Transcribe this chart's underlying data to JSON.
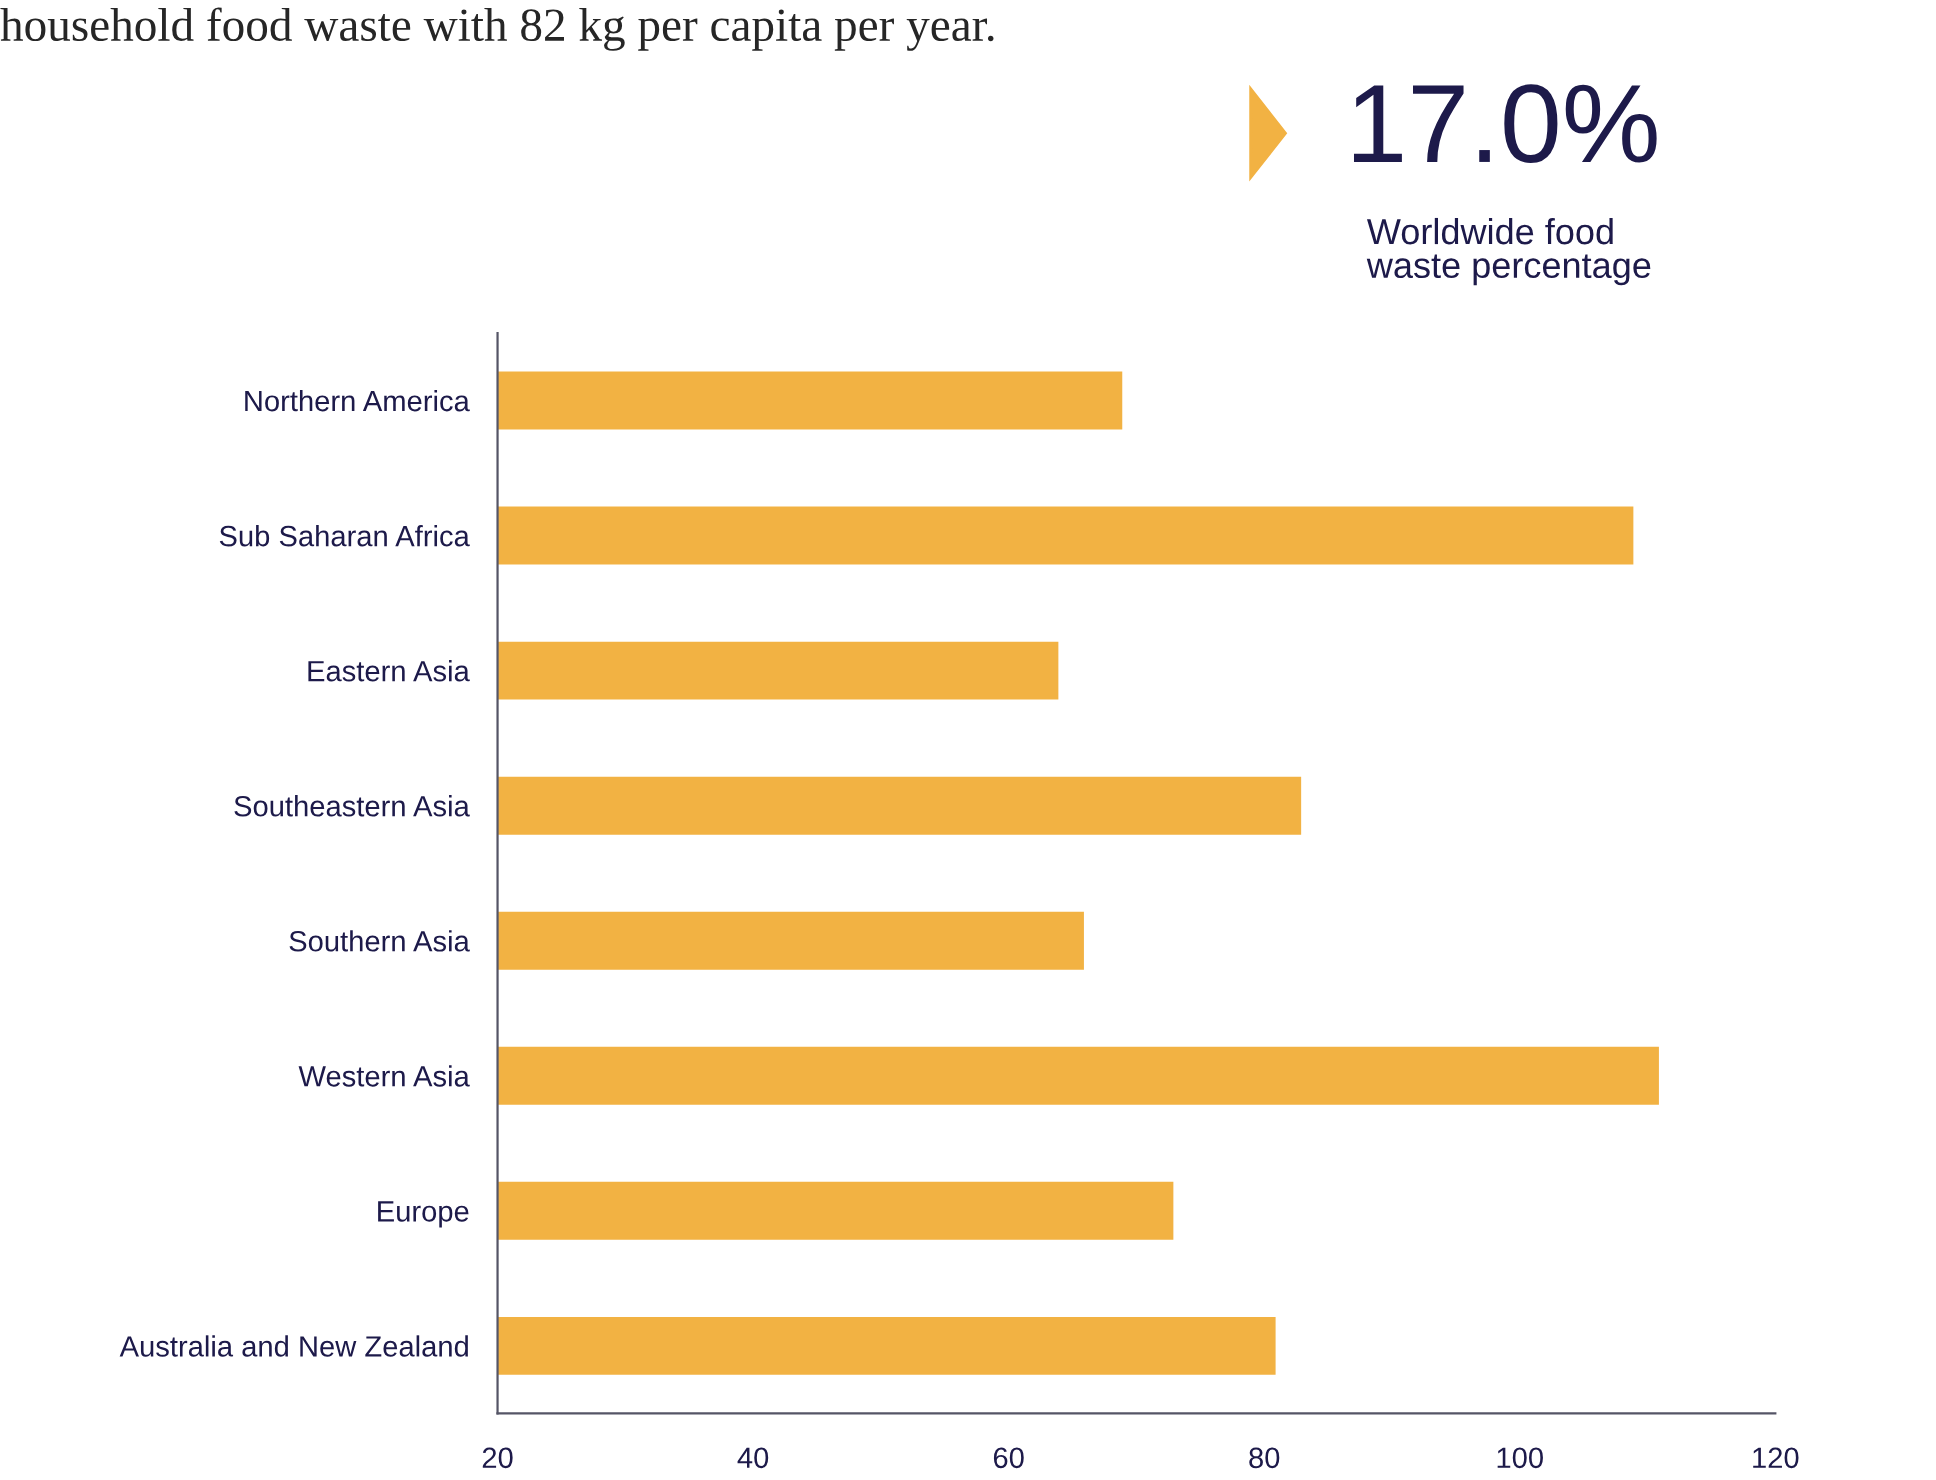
{
  "chart_data": {
    "type": "bar",
    "orientation": "horizontal",
    "categories": [
      "Northern America",
      "Sub Saharan Africa",
      "Eastern Asia",
      "Southeastern Asia",
      "Southern Asia",
      "Western Asia",
      "Europe",
      "Australia and New Zealand"
    ],
    "values": [
      69,
      109,
      64,
      83,
      66,
      111,
      73,
      81
    ],
    "color": "#f2b243",
    "xlim": [
      20,
      120
    ],
    "xticks": [
      20,
      40,
      60,
      80,
      100,
      120
    ],
    "grid": false,
    "legend": false,
    "annotations": [
      "household food waste with 82 kg per capita per year.",
      "17.0%",
      "Worldwide food\nwaste percentage"
    ]
  }
}
